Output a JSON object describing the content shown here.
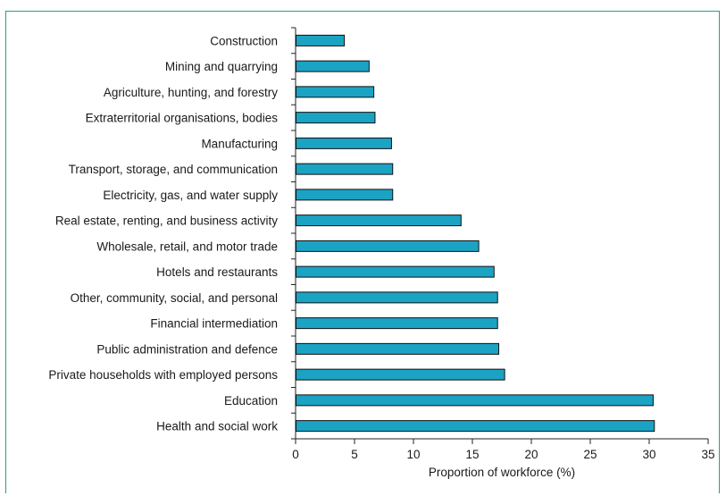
{
  "chart_data": {
    "type": "bar",
    "orientation": "horizontal",
    "categories": [
      "Construction",
      "Mining and quarrying",
      "Agriculture, hunting, and forestry",
      "Extraterritorial organisations, bodies",
      "Manufacturing",
      "Transport, storage, and communication",
      "Electricity, gas, and water supply",
      "Real estate, renting, and business activity",
      "Wholesale, retail, and motor trade",
      "Hotels and restaurants",
      "Other, community, social, and personal",
      "Financial intermediation",
      "Public administration and defence",
      "Private households with employed persons",
      "Education",
      "Health and social work"
    ],
    "values": [
      4.1,
      6.2,
      6.6,
      6.7,
      8.1,
      8.2,
      8.2,
      14.0,
      15.5,
      16.8,
      17.1,
      17.1,
      17.2,
      17.7,
      30.3,
      30.4
    ],
    "xlabel": "Proportion of workforce (%)",
    "ylabel": "",
    "xlim": [
      0,
      35
    ],
    "xticks": [
      0,
      5,
      10,
      15,
      20,
      25,
      30,
      35
    ],
    "bar_color": "#1ba3c4",
    "bar_edge_color": "#111111",
    "frame_color": "#2a9c8a",
    "grid": false
  }
}
